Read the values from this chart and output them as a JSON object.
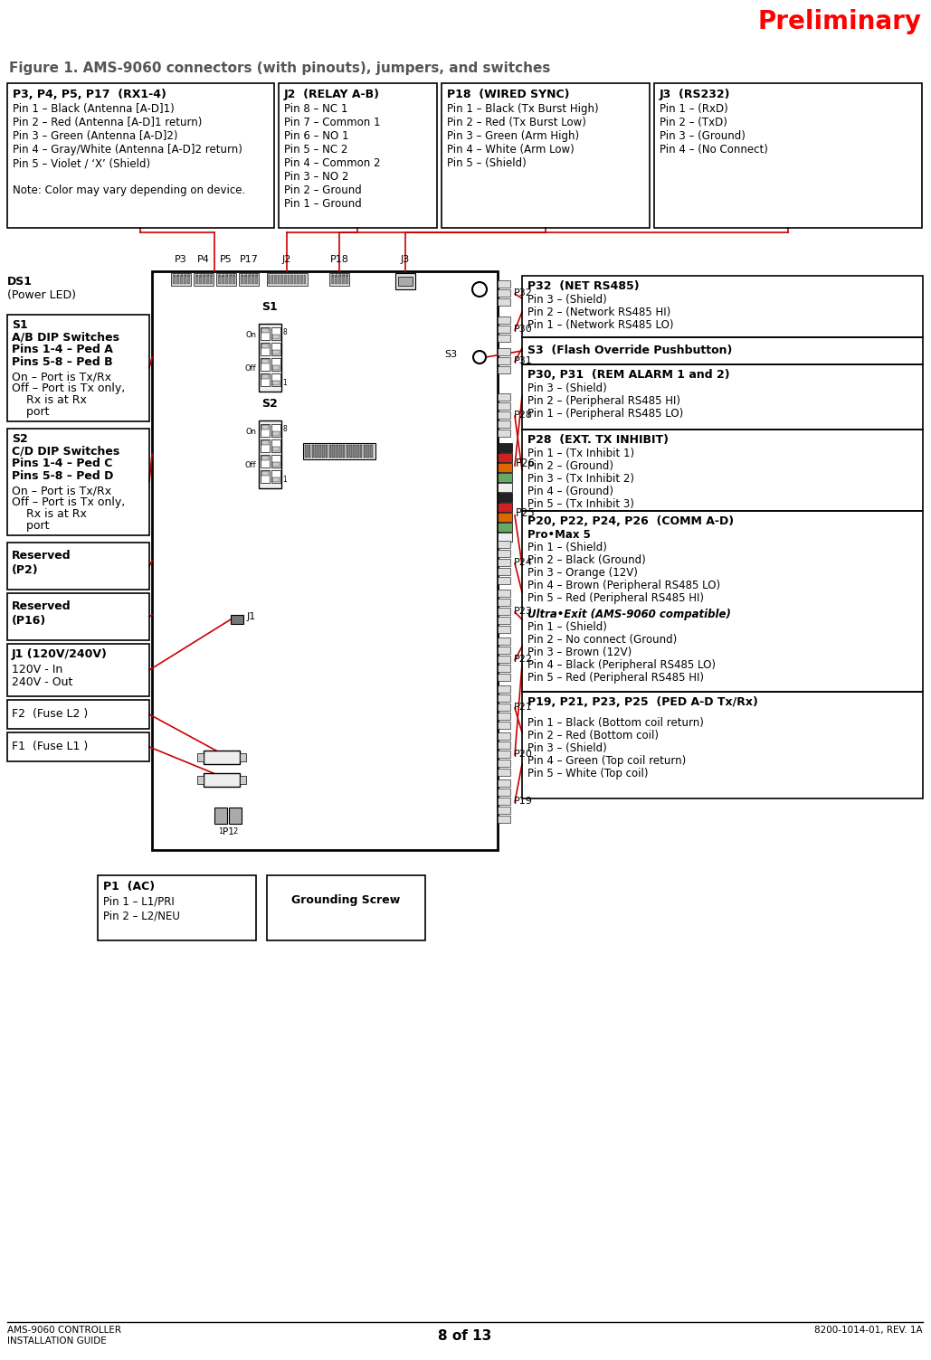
{
  "page_title": "Preliminary",
  "figure_title": "Figure 1. AMS-9060 connectors (with pinouts), jumpers, and switches",
  "footer_left_line1": "AMS-9060 CONTROLLER",
  "footer_left_line2": "INSTALLATION GUIDE",
  "footer_center": "8 of 13",
  "footer_right": "8200-1014-01, REV. 1A",
  "box1_title": "P3, P4, P5, P17  (RX1-4)",
  "box1_lines": [
    "Pin 1 – Black (Antenna [A-D]1)",
    "Pin 2 – Red (Antenna [A-D]1 return)",
    "Pin 3 – Green (Antenna [A-D]2)",
    "Pin 4 – Gray/White (Antenna [A-D]2 return)",
    "Pin 5 – Violet / ‘X’ (Shield)",
    "",
    "Note: Color may vary depending on device."
  ],
  "box2_title": "J2  (RELAY A-B)",
  "box2_lines": [
    "Pin 8 – NC 1",
    "Pin 7 – Common 1",
    "Pin 6 – NO 1",
    "Pin 5 – NC 2",
    "Pin 4 – Common 2",
    "Pin 3 – NO 2",
    "Pin 2 – Ground",
    "Pin 1 – Ground"
  ],
  "box3_title": "P18  (WIRED SYNC)",
  "box3_lines": [
    "Pin 1 – Black (Tx Burst High)",
    "Pin 2 – Red (Tx Burst Low)",
    "Pin 3 – Green (Arm High)",
    "Pin 4 – White (Arm Low)",
    "Pin 5 – (Shield)"
  ],
  "box4_title": "J3  (RS232)",
  "box4_lines": [
    "Pin 1 – (RxD)",
    "Pin 2 – (TxD)",
    "Pin 3 – (Ground)",
    "Pin 4 – (No Connect)"
  ],
  "right_box1_title": "P32  (NET RS485)",
  "right_box1_lines": [
    "Pin 3 – (Shield)",
    "Pin 2 – (Network RS485 HI)",
    "Pin 1 – (Network RS485 LO)"
  ],
  "right_box2_title": "S3  (Flash Override Pushbutton)",
  "right_box3_title": "P30, P31  (REM ALARM 1 and 2)",
  "right_box3_lines": [
    "Pin 3 – (Shield)",
    "Pin 2 – (Peripheral RS485 HI)",
    "Pin 1 – (Peripheral RS485 LO)"
  ],
  "right_box4_title": "P28  (EXT. TX INHIBIT)",
  "right_box4_lines": [
    "Pin 1 – (Tx Inhibit 1)",
    "Pin 2 – (Ground)",
    "Pin 3 – (Tx Inhibit 2)",
    "Pin 4 – (Ground)",
    "Pin 5 – (Tx Inhibit 3)"
  ],
  "right_box5_title": "P20, P22, P24, P26  (COMM A-D)",
  "right_box5_subtitle1": "Pro•Max 5",
  "right_box5_lines1": [
    "Pin 1 – (Shield)",
    "Pin 2 – Black (Ground)",
    "Pin 3 – Orange (12V)",
    "Pin 4 – Brown (Peripheral RS485 LO)",
    "Pin 5 – Red (Peripheral RS485 HI)"
  ],
  "right_box5_subtitle2": "Ultra•Exit (AMS-9060 compatible)",
  "right_box5_lines2": [
    "Pin 1 – (Shield) ",
    "Pin 2 – No connect (Ground)",
    "Pin 3 – Brown (12V)",
    "Pin 4 – Black (Peripheral RS485 LO)",
    "Pin 5 – Red (Peripheral RS485 HI)"
  ],
  "right_box6_title": "P19, P21, P23, P25  (PED A-D Tx/Rx)",
  "right_box6_lines": [
    "Pin 1 – Black (Bottom coil return)",
    "Pin 2 – Red (Bottom coil)",
    "Pin 3 – (Shield)",
    "Pin 4 – Green (Top coil return)",
    "Pin 5 – White (Top coil)"
  ],
  "s1_lines": [
    "On – Port is Tx/Rx",
    "Off – Port is Tx only,",
    "    Rx is at Rx",
    "    port"
  ],
  "s2_lines": [
    "On – Port is Tx/Rx",
    "Off – Port is Tx only,",
    "    Rx is at Rx",
    "    port"
  ],
  "f2_text": "F2  (Fuse L2 )",
  "f1_text": "F1  (Fuse L1 )",
  "grounding_text": "Grounding Screw",
  "bg_color": "#ffffff",
  "title_color": "#ff0000",
  "red_line": "#cc0000"
}
